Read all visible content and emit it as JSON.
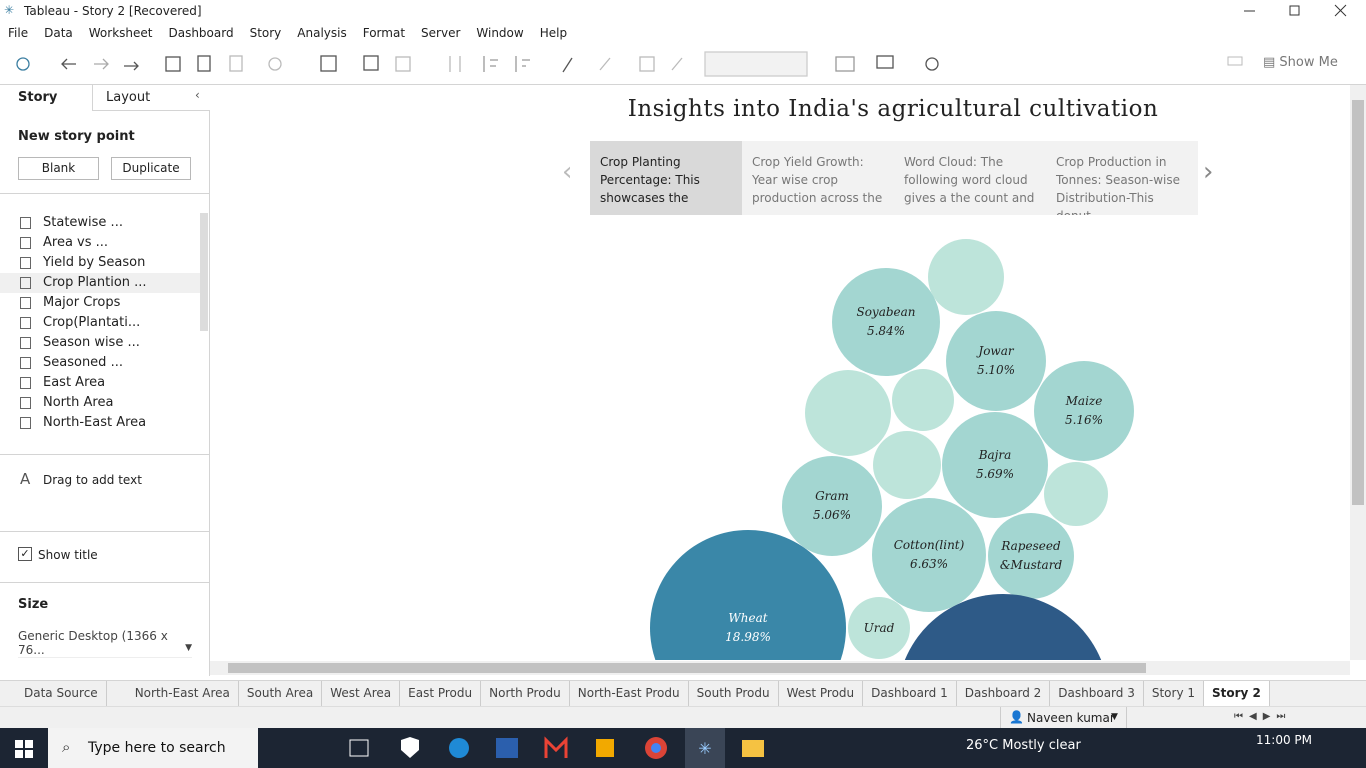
{
  "window": {
    "title": "Tableau - Story 2 [Recovered]"
  },
  "menu": [
    "File",
    "Data",
    "Worksheet",
    "Dashboard",
    "Story",
    "Analysis",
    "Format",
    "Server",
    "Window",
    "Help"
  ],
  "toolbar": {
    "show_me": "Show Me"
  },
  "side_panel": {
    "tabs": [
      "Story",
      "Layout"
    ],
    "new_story_point": "New story point",
    "buttons": [
      "Blank",
      "Duplicate"
    ],
    "sheets": [
      "Statewise ...",
      "Area vs ...",
      "Yield by Season",
      "Crop Plantion ...",
      "Major Crops",
      "Crop(Plantati...",
      "Season wise ...",
      "Seasoned ...",
      "East Area",
      "North Area",
      "North-East Area"
    ],
    "drag_text": "Drag to add text",
    "show_title": "Show title",
    "size_heading": "Size",
    "size_value": "Generic Desktop (1366 x 76..."
  },
  "story": {
    "title": "Insights into India's agricultural cultivation",
    "points": [
      "Crop Planting Percentage: This showcases the",
      "Crop Yield Growth: Year wise crop production across the",
      "Word Cloud: The following word cloud gives a the count and",
      "Crop Production in Tonnes: Season-wise Distribution-This donut"
    ],
    "bubbles": [
      {
        "label": "Soyabean",
        "value": "5.84%"
      },
      {
        "label": "Jowar",
        "value": "5.10%"
      },
      {
        "label": "Maize",
        "value": "5.16%"
      },
      {
        "label": "Bajra",
        "value": "5.69%"
      },
      {
        "label": "Gram",
        "value": "5.06%"
      },
      {
        "label": "Cotton(lint)",
        "value": "6.63%"
      },
      {
        "label": "Rapeseed &Mustard"
      },
      {
        "label": "Wheat",
        "value": "18.98%"
      },
      {
        "label": "Urad"
      }
    ]
  },
  "sheet_tabs": [
    "Data Source",
    "North-East Area",
    "South Area",
    "West Area",
    "East Produ",
    "North Produ",
    "North-East Produ",
    "South Produ",
    "West Produ",
    "Dashboard 1",
    "Dashboard 2",
    "Dashboard 3",
    "Story 1",
    "Story 2"
  ],
  "status": {
    "user": "Naveen kumar"
  },
  "taskbar": {
    "search": "Type here to search",
    "weather": "26°C  Mostly clear",
    "time": "11:00 PM"
  }
}
